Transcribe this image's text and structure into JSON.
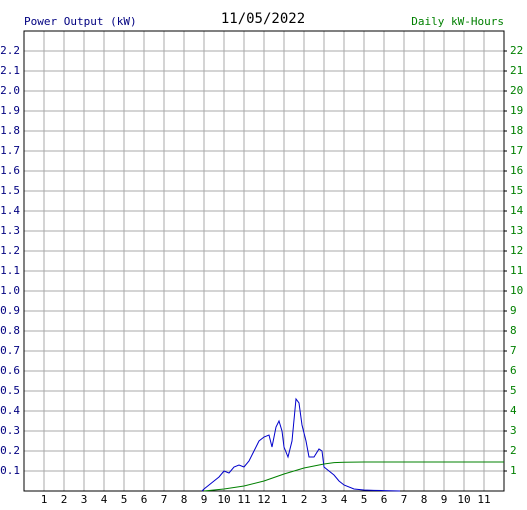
{
  "chart_data": {
    "type": "line",
    "title": "11/05/2022",
    "y_label": "Power Output (kW)",
    "y2_label": "Daily kW-Hours",
    "xlim": [
      0,
      24
    ],
    "xticks": [
      1,
      2,
      3,
      4,
      5,
      6,
      7,
      8,
      9,
      10,
      11,
      12,
      {
        "value": 13,
        "label": "1"
      },
      {
        "value": 14,
        "label": "2"
      },
      {
        "value": 15,
        "label": "3"
      },
      {
        "value": 16,
        "label": "4"
      },
      {
        "value": 17,
        "label": "5"
      },
      {
        "value": 18,
        "label": "6"
      },
      {
        "value": 19,
        "label": "7"
      },
      {
        "value": 20,
        "label": "8"
      },
      {
        "value": 21,
        "label": "9"
      },
      {
        "value": 22,
        "label": "10"
      },
      {
        "value": 23,
        "label": "11"
      }
    ],
    "ylim": [
      0,
      2.3
    ],
    "yticks": [
      0.1,
      0.2,
      0.3,
      0.4,
      0.5,
      0.6,
      0.7,
      0.8,
      0.9,
      {
        "value": 1,
        "label": "1.0"
      },
      1.1,
      1.2,
      1.3,
      1.4,
      1.5,
      1.6,
      1.7,
      1.8,
      1.9,
      {
        "value": 2,
        "label": "2.0"
      },
      2.1,
      2.2
    ],
    "y2lim": [
      0,
      23
    ],
    "y2ticks": [
      1,
      2,
      3,
      4,
      5,
      6,
      7,
      8,
      9,
      10,
      11,
      12,
      13,
      14,
      15,
      16,
      17,
      18,
      19,
      20,
      21,
      22
    ],
    "grid": true,
    "y_label_color": "#000080",
    "y2_label_color": "#008000",
    "series": [
      {
        "name": "Power Output",
        "color": "#0000cc",
        "x": [
          8.9,
          9.0,
          9.25,
          9.5,
          9.75,
          10.0,
          10.25,
          10.5,
          10.75,
          11.0,
          11.25,
          11.5,
          11.75,
          12.0,
          12.25,
          12.4,
          12.6,
          12.75,
          12.9,
          13.0,
          13.2,
          13.4,
          13.6,
          13.75,
          13.9,
          14.1,
          14.25,
          14.5,
          14.75,
          14.9,
          15.0,
          15.25,
          15.5,
          15.75,
          16.0,
          16.5,
          17.0,
          17.5,
          18.0,
          18.8
        ],
        "values": [
          0,
          0.01,
          0.03,
          0.05,
          0.07,
          0.1,
          0.09,
          0.12,
          0.13,
          0.12,
          0.15,
          0.2,
          0.25,
          0.27,
          0.28,
          0.22,
          0.32,
          0.35,
          0.3,
          0.22,
          0.17,
          0.25,
          0.46,
          0.44,
          0.33,
          0.25,
          0.17,
          0.17,
          0.21,
          0.2,
          0.12,
          0.1,
          0.08,
          0.05,
          0.03,
          0.01,
          0.005,
          0.003,
          0.002,
          0
        ]
      },
      {
        "name": "Daily kW-Hours",
        "color": "#008000",
        "axis": "y2",
        "x": [
          9.0,
          10.0,
          11.0,
          12.0,
          13.0,
          14.0,
          14.5,
          15.0,
          15.5,
          16.0,
          17.0,
          18.0,
          24.0
        ],
        "values": [
          0,
          0.1,
          0.25,
          0.5,
          0.85,
          1.15,
          1.25,
          1.35,
          1.42,
          1.44,
          1.45,
          1.45,
          1.45
        ]
      }
    ]
  }
}
